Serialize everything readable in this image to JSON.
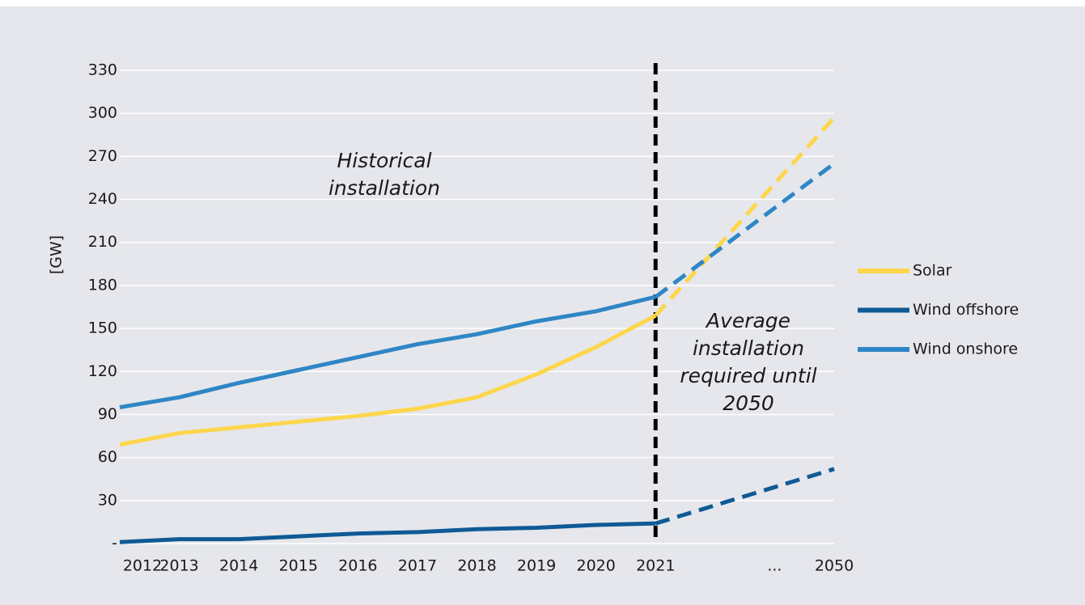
{
  "chart_data": {
    "type": "line",
    "y_label": "[GW]",
    "categories": [
      "2012",
      "2013",
      "2014",
      "2015",
      "2016",
      "2017",
      "2018",
      "2019",
      "2020",
      "2021",
      null,
      "...",
      "2050"
    ],
    "series": [
      {
        "name": "Solar",
        "color": "#fdd64b",
        "values": [
          69,
          77,
          81,
          85,
          89,
          94,
          102,
          118,
          137,
          159,
          null,
          null,
          297
        ]
      },
      {
        "name": "Wind offshore",
        "color": "#0f5a96",
        "values": [
          1,
          3,
          3,
          5,
          7,
          8,
          10,
          11,
          13,
          14,
          null,
          null,
          52
        ]
      },
      {
        "name": "Wind onshore",
        "color": "#2f86c5",
        "values": [
          95,
          102,
          112,
          121,
          130,
          139,
          146,
          155,
          162,
          172,
          null,
          null,
          265
        ]
      }
    ],
    "gap_line": "dashed",
    "ylim": [
      0,
      330
    ],
    "yticks": [
      {
        "value": 0,
        "label": "-"
      },
      30,
      60,
      90,
      120,
      150,
      180,
      210,
      240,
      270,
      300,
      330
    ],
    "grid": true,
    "annotations": [
      {
        "lines": [
          "Historical",
          "installation"
        ]
      },
      {
        "lines": [
          "Average",
          "installation",
          "required until",
          "2050"
        ]
      }
    ],
    "legend": "right"
  }
}
